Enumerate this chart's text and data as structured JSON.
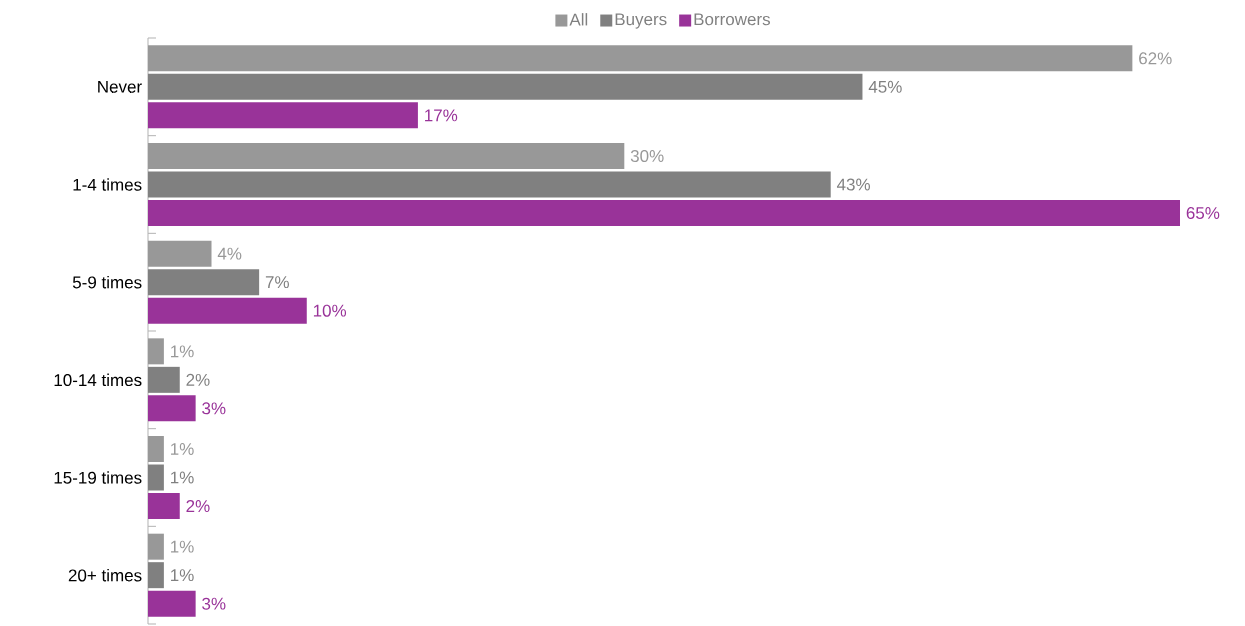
{
  "chart_data": {
    "type": "bar",
    "orientation": "horizontal",
    "xlim": [
      0,
      65
    ],
    "tick_labels": "y",
    "legend": "top",
    "data_labels": true,
    "categories": [
      "Never",
      "1-4 times",
      "5-9 times",
      "10-14 times",
      "15-19 times",
      "20+ times"
    ],
    "series": [
      {
        "name": "All",
        "color": "#989898",
        "values": [
          62,
          30,
          4,
          1,
          1,
          1
        ],
        "value_labels": [
          "62%",
          "30%",
          "4%",
          "1%",
          "1%",
          "1%"
        ]
      },
      {
        "name": "Buyers",
        "color": "#808080",
        "values": [
          45,
          43,
          7,
          2,
          1,
          1
        ],
        "value_labels": [
          "45%",
          "43%",
          "7%",
          "2%",
          "1%",
          "1%"
        ]
      },
      {
        "name": "Borrowers",
        "color": "#993399",
        "values": [
          17,
          65,
          10,
          3,
          2,
          3
        ],
        "value_labels": [
          "17%",
          "65%",
          "10%",
          "3%",
          "2%",
          "3%"
        ]
      }
    ]
  }
}
